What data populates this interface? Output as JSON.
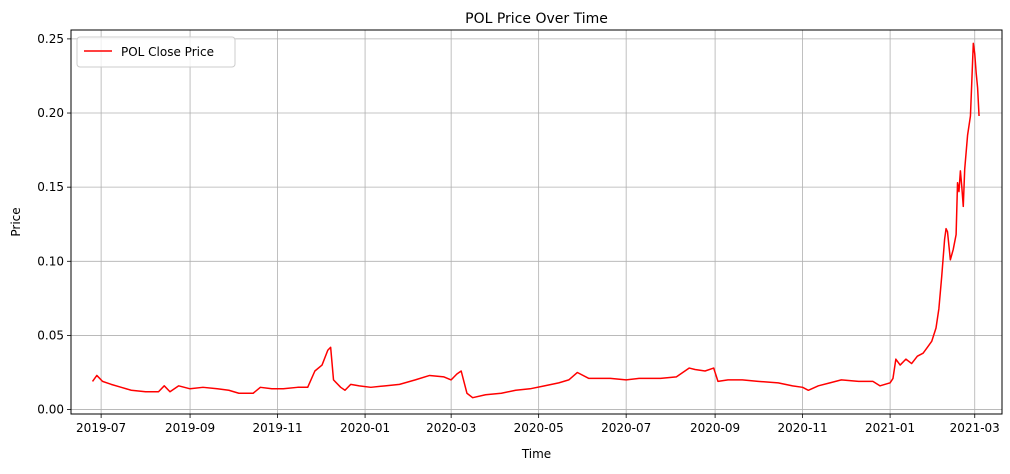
{
  "chart_data": {
    "type": "line",
    "title": "POL Price Over Time",
    "xlabel": "Time",
    "ylabel": "Price",
    "xlim": [
      "2019-06-10",
      "2021-03-20"
    ],
    "ylim": [
      -0.003,
      0.256
    ],
    "x_ticks": [
      "2019-07",
      "2019-09",
      "2019-11",
      "2020-01",
      "2020-03",
      "2020-05",
      "2020-07",
      "2020-09",
      "2020-11",
      "2021-01",
      "2021-03"
    ],
    "y_ticks": [
      "0.00",
      "0.05",
      "0.10",
      "0.15",
      "0.20",
      "0.25"
    ],
    "grid": true,
    "legend_position": "top-left",
    "series": [
      {
        "name": "POL Close Price",
        "color": "#ff0000",
        "points": [
          [
            "2019-06-25",
            0.019
          ],
          [
            "2019-06-28",
            0.023
          ],
          [
            "2019-07-02",
            0.019
          ],
          [
            "2019-07-08",
            0.017
          ],
          [
            "2019-07-15",
            0.015
          ],
          [
            "2019-07-22",
            0.013
          ],
          [
            "2019-08-01",
            0.012
          ],
          [
            "2019-08-10",
            0.012
          ],
          [
            "2019-08-14",
            0.016
          ],
          [
            "2019-08-18",
            0.012
          ],
          [
            "2019-08-24",
            0.016
          ],
          [
            "2019-09-01",
            0.014
          ],
          [
            "2019-09-10",
            0.015
          ],
          [
            "2019-09-20",
            0.014
          ],
          [
            "2019-09-28",
            0.013
          ],
          [
            "2019-10-05",
            0.011
          ],
          [
            "2019-10-15",
            0.011
          ],
          [
            "2019-10-20",
            0.015
          ],
          [
            "2019-10-28",
            0.014
          ],
          [
            "2019-11-05",
            0.014
          ],
          [
            "2019-11-15",
            0.015
          ],
          [
            "2019-11-22",
            0.015
          ],
          [
            "2019-11-27",
            0.026
          ],
          [
            "2019-12-02",
            0.03
          ],
          [
            "2019-12-06",
            0.04
          ],
          [
            "2019-12-08",
            0.042
          ],
          [
            "2019-12-10",
            0.02
          ],
          [
            "2019-12-15",
            0.015
          ],
          [
            "2019-12-18",
            0.013
          ],
          [
            "2019-12-22",
            0.017
          ],
          [
            "2019-12-28",
            0.016
          ],
          [
            "2020-01-05",
            0.015
          ],
          [
            "2020-01-15",
            0.016
          ],
          [
            "2020-01-25",
            0.017
          ],
          [
            "2020-02-05",
            0.02
          ],
          [
            "2020-02-15",
            0.023
          ],
          [
            "2020-02-25",
            0.022
          ],
          [
            "2020-03-01",
            0.02
          ],
          [
            "2020-03-05",
            0.024
          ],
          [
            "2020-03-08",
            0.026
          ],
          [
            "2020-03-12",
            0.011
          ],
          [
            "2020-03-16",
            0.008
          ],
          [
            "2020-03-25",
            0.01
          ],
          [
            "2020-04-05",
            0.011
          ],
          [
            "2020-04-15",
            0.013
          ],
          [
            "2020-04-25",
            0.014
          ],
          [
            "2020-05-05",
            0.016
          ],
          [
            "2020-05-15",
            0.018
          ],
          [
            "2020-05-22",
            0.02
          ],
          [
            "2020-05-28",
            0.025
          ],
          [
            "2020-06-05",
            0.021
          ],
          [
            "2020-06-20",
            0.021
          ],
          [
            "2020-07-01",
            0.02
          ],
          [
            "2020-07-10",
            0.021
          ],
          [
            "2020-07-25",
            0.021
          ],
          [
            "2020-08-05",
            0.022
          ],
          [
            "2020-08-14",
            0.028
          ],
          [
            "2020-08-18",
            0.027
          ],
          [
            "2020-08-25",
            0.026
          ],
          [
            "2020-08-31",
            0.028
          ],
          [
            "2020-09-03",
            0.019
          ],
          [
            "2020-09-10",
            0.02
          ],
          [
            "2020-09-20",
            0.02
          ],
          [
            "2020-10-01",
            0.019
          ],
          [
            "2020-10-15",
            0.018
          ],
          [
            "2020-10-25",
            0.016
          ],
          [
            "2020-11-01",
            0.015
          ],
          [
            "2020-11-05",
            0.013
          ],
          [
            "2020-11-12",
            0.016
          ],
          [
            "2020-11-20",
            0.018
          ],
          [
            "2020-11-28",
            0.02
          ],
          [
            "2020-12-10",
            0.019
          ],
          [
            "2020-12-20",
            0.019
          ],
          [
            "2020-12-25",
            0.016
          ],
          [
            "2021-01-01",
            0.018
          ],
          [
            "2021-01-03",
            0.021
          ],
          [
            "2021-01-05",
            0.034
          ],
          [
            "2021-01-08",
            0.03
          ],
          [
            "2021-01-12",
            0.034
          ],
          [
            "2021-01-16",
            0.031
          ],
          [
            "2021-01-20",
            0.036
          ],
          [
            "2021-01-24",
            0.038
          ],
          [
            "2021-01-27",
            0.042
          ],
          [
            "2021-01-30",
            0.046
          ],
          [
            "2021-02-02",
            0.055
          ],
          [
            "2021-02-04",
            0.068
          ],
          [
            "2021-02-06",
            0.09
          ],
          [
            "2021-02-08",
            0.115
          ],
          [
            "2021-02-09",
            0.122
          ],
          [
            "2021-02-10",
            0.12
          ],
          [
            "2021-02-12",
            0.101
          ],
          [
            "2021-02-14",
            0.108
          ],
          [
            "2021-02-16",
            0.118
          ],
          [
            "2021-02-17",
            0.153
          ],
          [
            "2021-02-18",
            0.147
          ],
          [
            "2021-02-19",
            0.161
          ],
          [
            "2021-02-20",
            0.15
          ],
          [
            "2021-02-21",
            0.137
          ],
          [
            "2021-02-22",
            0.162
          ],
          [
            "2021-02-24",
            0.185
          ],
          [
            "2021-02-26",
            0.198
          ],
          [
            "2021-02-28",
            0.247
          ],
          [
            "2021-03-01",
            0.24
          ],
          [
            "2021-03-02",
            0.227
          ],
          [
            "2021-03-03",
            0.217
          ],
          [
            "2021-03-04",
            0.198
          ]
        ]
      }
    ]
  }
}
